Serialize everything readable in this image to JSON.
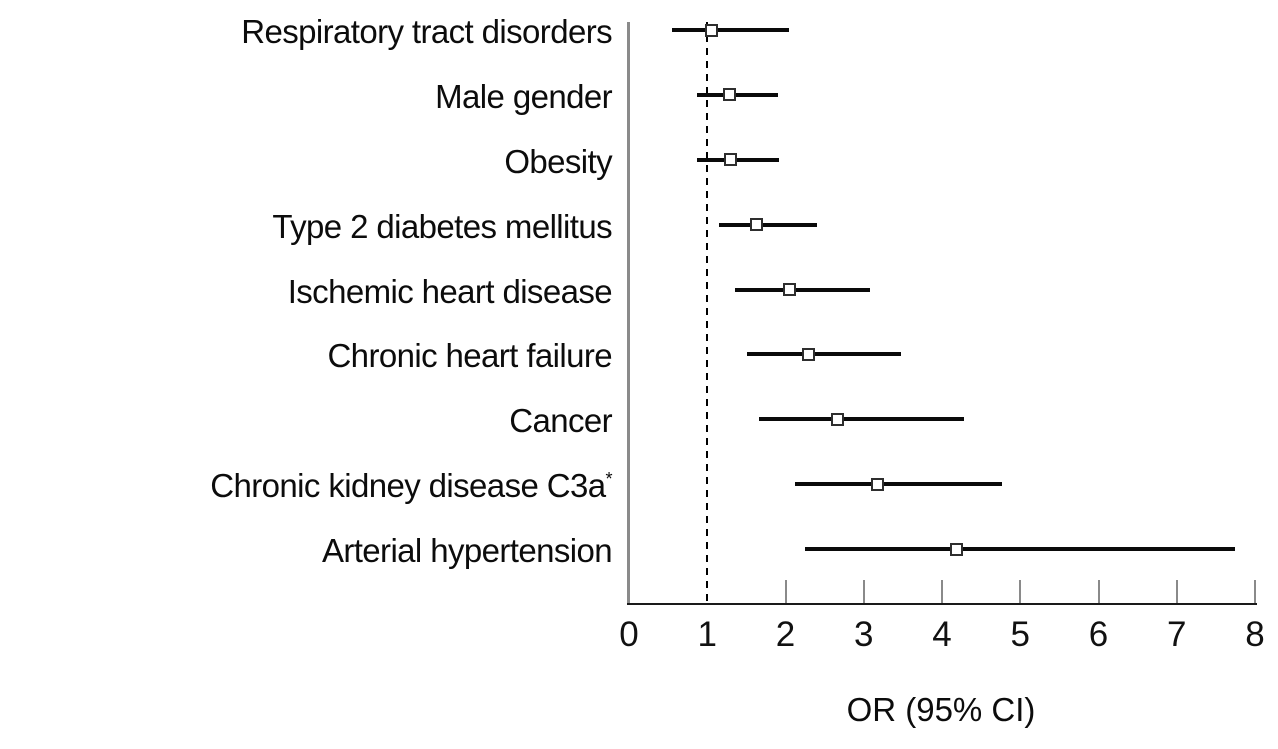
{
  "figure": {
    "background": "#ffffff",
    "description": "Forest plot of odds ratios with 95% confidence intervals"
  },
  "colors": {
    "ci_line": "#0a0a0a",
    "marker_fill": "#ffffff",
    "marker_border": "#2e2e2e",
    "y_axis": "#8a8a8a",
    "x_axis": "#1a1a1a",
    "tick": "#8a8a8a",
    "reference_line": "#000000",
    "text": "#0c0c0c"
  },
  "chart_data": {
    "type": "scatter",
    "subtype": "forest-plot",
    "title": "",
    "xlabel": "OR (95% CI)",
    "ylabel": "",
    "xlim": [
      0,
      8
    ],
    "xticks": [
      0,
      1,
      2,
      3,
      4,
      5,
      6,
      7,
      8
    ],
    "grid": false,
    "legend": false,
    "reference_line": {
      "x": 1,
      "style": "dashed"
    },
    "marker_shape": "open-square",
    "rows": [
      {
        "label": "Respiratory tract disorders",
        "label_sup": "",
        "or": 1.05,
        "ci_low": 0.55,
        "ci_high": 2.05
      },
      {
        "label": "Male gender",
        "label_sup": "",
        "or": 1.28,
        "ci_low": 0.87,
        "ci_high": 1.9
      },
      {
        "label": "Obesity",
        "label_sup": "",
        "or": 1.3,
        "ci_low": 0.87,
        "ci_high": 1.92
      },
      {
        "label": "Type 2 diabetes mellitus",
        "label_sup": "",
        "or": 1.63,
        "ci_low": 1.15,
        "ci_high": 2.4
      },
      {
        "label": "Ischemic heart disease",
        "label_sup": "",
        "or": 2.05,
        "ci_low": 1.36,
        "ci_high": 3.08
      },
      {
        "label": "Chronic heart failure",
        "label_sup": "",
        "or": 2.29,
        "ci_low": 1.51,
        "ci_high": 3.48
      },
      {
        "label": "Cancer",
        "label_sup": "",
        "or": 2.66,
        "ci_low": 1.66,
        "ci_high": 4.28
      },
      {
        "label": "Chronic kidney disease C3a",
        "label_sup": "*",
        "or": 3.18,
        "ci_low": 2.12,
        "ci_high": 4.77
      },
      {
        "label": "Arterial hypertension",
        "label_sup": "",
        "or": 4.19,
        "ci_low": 2.25,
        "ci_high": 7.75
      }
    ]
  }
}
